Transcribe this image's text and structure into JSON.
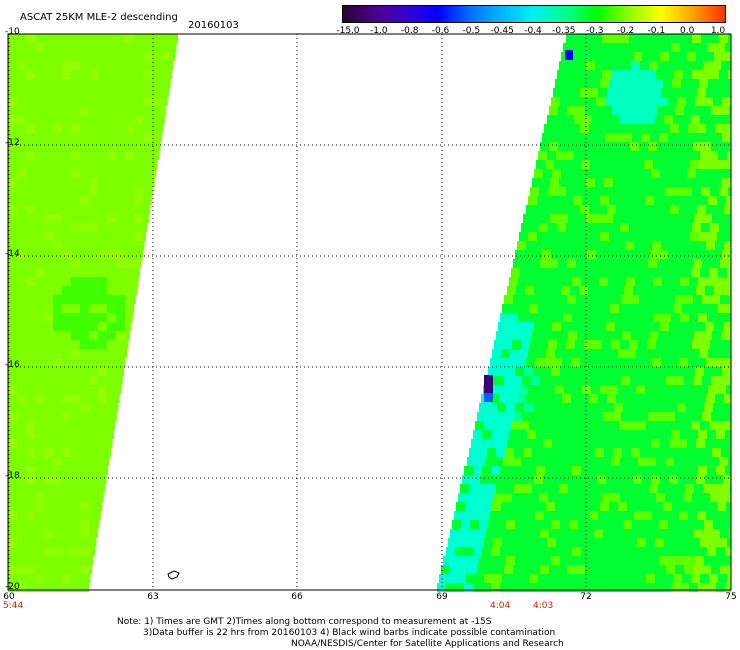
{
  "title": "ASCAT 25KM MLE-2 descending",
  "date": "20160103",
  "colorbar": {
    "labels": [
      "-15.0",
      "-1.0",
      "-0.8",
      "-0.6",
      "-0.5",
      "-0.45",
      "-0.4",
      "-0.35",
      "-0.3",
      "-0.2",
      "-0.1",
      "0.0",
      "1.0"
    ],
    "colors": [
      "#2a0033",
      "#4a008a",
      "#3a00d0",
      "#0000ff",
      "#0070ff",
      "#00b8ff",
      "#00f0f0",
      "#00ff90",
      "#00ff00",
      "#90ff00",
      "#ffff00",
      "#ffa000",
      "#ff3000"
    ]
  },
  "axes": {
    "lat_labels": [
      "-10",
      "-12",
      "-14",
      "-16",
      "-18",
      "-20"
    ],
    "lon_labels": [
      "60",
      "63",
      "66",
      "69",
      "72",
      "75"
    ]
  },
  "times": {
    "left": "5:44",
    "mid1": "4:04",
    "mid2": "4:03"
  },
  "notes": {
    "line1": "Note: 1) Times are GMT 2)Times along bottom correspond to measurement at -15S",
    "line2": "3)Data buffer is 22 hrs from 20160103 4) Black wind barbs indicate possible contamination",
    "line3": "NOAA/NESDIS/Center for Satellite Applications and Research"
  },
  "colors": {
    "swath_green": "#7dff00",
    "swath_bright": "#00ff40",
    "swath_cyan": "#00ffd0"
  }
}
